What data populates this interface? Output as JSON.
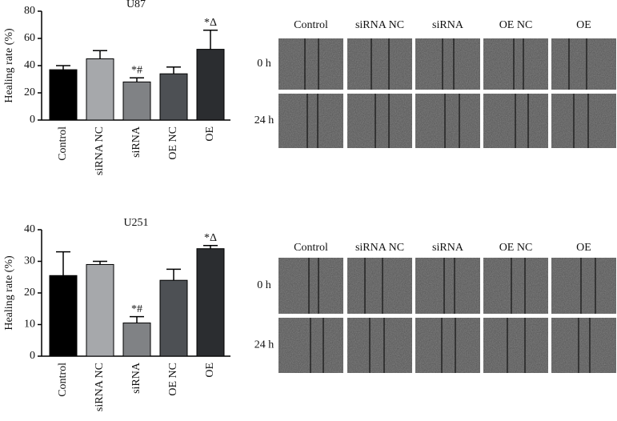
{
  "chart_data": [
    {
      "type": "bar",
      "title": "U87",
      "y_label": "Healing rate (%)",
      "categories": [
        "Control",
        "siRNA NC",
        "siRNA",
        "OE NC",
        "OE"
      ],
      "values": [
        37,
        45,
        28,
        34,
        52
      ],
      "errors": [
        3,
        6,
        3,
        5,
        14
      ],
      "annotations": [
        null,
        null,
        "*#",
        null,
        "*Δ"
      ],
      "colors": [
        "#000000",
        "#a6a8ab",
        "#808285",
        "#4d5054",
        "#2b2d30"
      ],
      "ylim": [
        0,
        80
      ],
      "yticks": [
        0,
        20,
        40,
        60,
        80
      ]
    },
    {
      "type": "bar",
      "title": "U251",
      "y_label": "Healing rate (%)",
      "categories": [
        "Control",
        "siRNA NC",
        "siRNA",
        "OE NC",
        "OE"
      ],
      "values": [
        25.5,
        29,
        10.5,
        24,
        34
      ],
      "errors": [
        7.5,
        1,
        2,
        3.5,
        1
      ],
      "annotations": [
        null,
        null,
        "*#",
        null,
        "*Δ"
      ],
      "colors": [
        "#000000",
        "#a6a8ab",
        "#808285",
        "#4d5054",
        "#2b2d30"
      ],
      "ylim": [
        0,
        40
      ],
      "yticks": [
        0,
        10,
        20,
        30,
        40
      ]
    }
  ],
  "micrographs": [
    {
      "columns": [
        "Control",
        "siRNA NC",
        "siRNA",
        "OE NC",
        "OE"
      ],
      "rows": [
        "0 h",
        "24 h"
      ]
    },
    {
      "columns": [
        "Control",
        "siRNA NC",
        "siRNA",
        "OE NC",
        "OE"
      ],
      "rows": [
        "0 h",
        "24 h"
      ]
    }
  ]
}
